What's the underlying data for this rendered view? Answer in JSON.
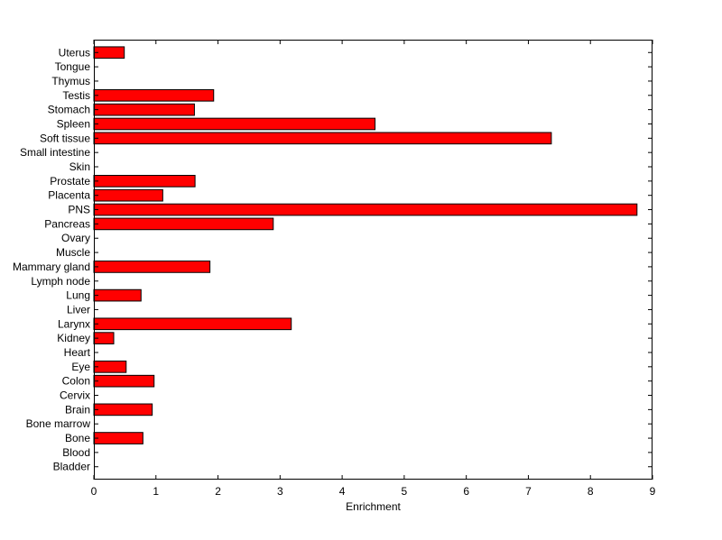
{
  "chart_data": {
    "type": "bar",
    "orientation": "horizontal",
    "title": "",
    "xlabel": "Enrichment",
    "ylabel": "",
    "xlim": [
      0,
      9
    ],
    "xticks": [
      0,
      1,
      2,
      3,
      4,
      5,
      6,
      7,
      8,
      9
    ],
    "grid": false,
    "bar_color": "#ff0000",
    "bar_edge_color": "#000000",
    "categories": [
      "Uterus",
      "Tongue",
      "Thymus",
      "Testis",
      "Stomach",
      "Spleen",
      "Soft tissue",
      "Small intestine",
      "Skin",
      "Prostate",
      "Placenta",
      "PNS",
      "Pancreas",
      "Ovary",
      "Muscle",
      "Mammary gland",
      "Lymph node",
      "Lung",
      "Liver",
      "Larynx",
      "Kidney",
      "Heart",
      "Eye",
      "Colon",
      "Cervix",
      "Brain",
      "Bone marrow",
      "Bone",
      "Blood",
      "Bladder"
    ],
    "values": [
      0.49,
      0,
      0,
      1.93,
      1.62,
      4.53,
      7.37,
      0,
      0,
      1.63,
      1.11,
      8.75,
      2.89,
      0,
      0,
      1.87,
      0,
      0.76,
      0,
      3.18,
      0.32,
      0,
      0.52,
      0.97,
      0,
      0.94,
      0,
      0.79,
      0,
      0
    ]
  }
}
